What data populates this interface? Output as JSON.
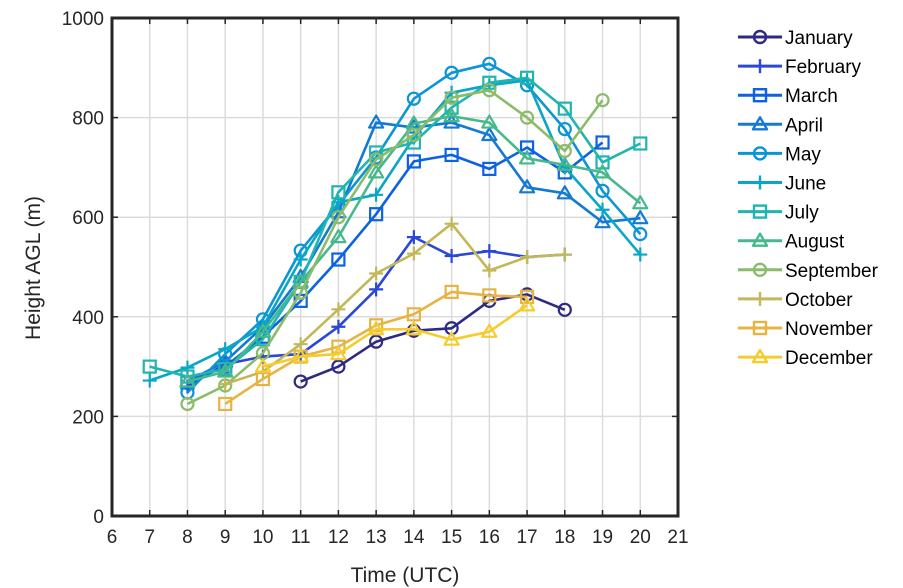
{
  "chart_data": {
    "type": "line",
    "title": "",
    "xlabel": "Time (UTC)",
    "ylabel": "Height AGL (m)",
    "xlim": [
      6,
      21
    ],
    "ylim": [
      0,
      1000
    ],
    "xticks": [
      6,
      7,
      8,
      9,
      10,
      11,
      12,
      13,
      14,
      15,
      16,
      17,
      18,
      19,
      20,
      21
    ],
    "yticks": [
      0,
      200,
      400,
      600,
      800,
      1000
    ],
    "grid": true,
    "legend_position": "outside-right",
    "series": [
      {
        "name": "January",
        "marker": "circle",
        "color": "#2e2a83",
        "x": [
          11,
          12,
          13,
          14,
          15,
          16,
          17,
          18
        ],
        "y": [
          270,
          300,
          350,
          372,
          377,
          432,
          445,
          414
        ]
      },
      {
        "name": "February",
        "marker": "plus",
        "color": "#2a47d6",
        "x": [
          8,
          9,
          10,
          11,
          12,
          13,
          14,
          15,
          16,
          17,
          18
        ],
        "y": [
          260,
          305,
          320,
          325,
          380,
          455,
          560,
          522,
          532,
          520,
          525
        ]
      },
      {
        "name": "March",
        "marker": "square",
        "color": "#0c62e0",
        "x": [
          8,
          9,
          10,
          11,
          12,
          13,
          14,
          15,
          16,
          17,
          18,
          19
        ],
        "y": [
          268,
          300,
          360,
          432,
          515,
          606,
          712,
          725,
          697,
          740,
          690,
          750
        ]
      },
      {
        "name": "April",
        "marker": "triangle",
        "color": "#1479d2",
        "x": [
          8,
          9,
          10,
          11,
          12,
          13,
          14,
          15,
          16,
          17,
          18,
          19,
          20
        ],
        "y": [
          270,
          310,
          380,
          480,
          610,
          790,
          780,
          790,
          765,
          660,
          648,
          590,
          598
        ]
      },
      {
        "name": "May",
        "marker": "circle",
        "color": "#0b95d6",
        "x": [
          8,
          9,
          10,
          11,
          12,
          13,
          14,
          15,
          16,
          17,
          18,
          19,
          20
        ],
        "y": [
          248,
          325,
          395,
          533,
          625,
          720,
          838,
          890,
          908,
          865,
          777,
          653,
          566
        ]
      },
      {
        "name": "June",
        "marker": "plus",
        "color": "#0aa6c6",
        "x": [
          7,
          8,
          9,
          10,
          11,
          12,
          13,
          14,
          15,
          16,
          17,
          18,
          19,
          20
        ],
        "y": [
          272,
          298,
          335,
          380,
          515,
          630,
          645,
          760,
          850,
          865,
          875,
          700,
          615,
          525
        ]
      },
      {
        "name": "July",
        "marker": "square",
        "color": "#20b5b0",
        "x": [
          7,
          8,
          9,
          10,
          11,
          12,
          13,
          14,
          15,
          16,
          17,
          18,
          19,
          20
        ],
        "y": [
          300,
          280,
          295,
          355,
          470,
          650,
          730,
          750,
          820,
          870,
          880,
          818,
          710,
          748
        ]
      },
      {
        "name": "August",
        "marker": "triangle",
        "color": "#46b98c",
        "x": [
          8,
          9,
          10,
          11,
          12,
          13,
          14,
          15,
          16,
          17,
          18,
          19,
          20
        ],
        "y": [
          270,
          290,
          370,
          470,
          560,
          690,
          788,
          803,
          790,
          718,
          705,
          690,
          628
        ]
      },
      {
        "name": "September",
        "marker": "circle",
        "color": "#8cbc6a",
        "x": [
          8,
          9,
          10,
          11,
          12,
          13,
          14,
          15,
          16,
          17,
          18,
          19
        ],
        "y": [
          225,
          262,
          327,
          448,
          600,
          716,
          765,
          840,
          855,
          800,
          733,
          835
        ]
      },
      {
        "name": "October",
        "marker": "plus",
        "color": "#c2b85a",
        "x": [
          9,
          10,
          11,
          12,
          13,
          14,
          15,
          16,
          17,
          18
        ],
        "y": [
          265,
          290,
          345,
          415,
          487,
          527,
          587,
          493,
          520,
          525
        ]
      },
      {
        "name": "November",
        "marker": "square",
        "color": "#e6b443",
        "x": [
          9,
          10,
          11,
          12,
          13,
          14,
          15,
          16,
          17
        ],
        "y": [
          225,
          275,
          320,
          340,
          383,
          405,
          450,
          443,
          440
        ]
      },
      {
        "name": "December",
        "marker": "triangle",
        "color": "#f5cc2e",
        "x": [
          10,
          11,
          12,
          13,
          14,
          15,
          16,
          17
        ],
        "y": [
          300,
          320,
          325,
          375,
          375,
          354,
          370,
          423
        ]
      }
    ]
  }
}
